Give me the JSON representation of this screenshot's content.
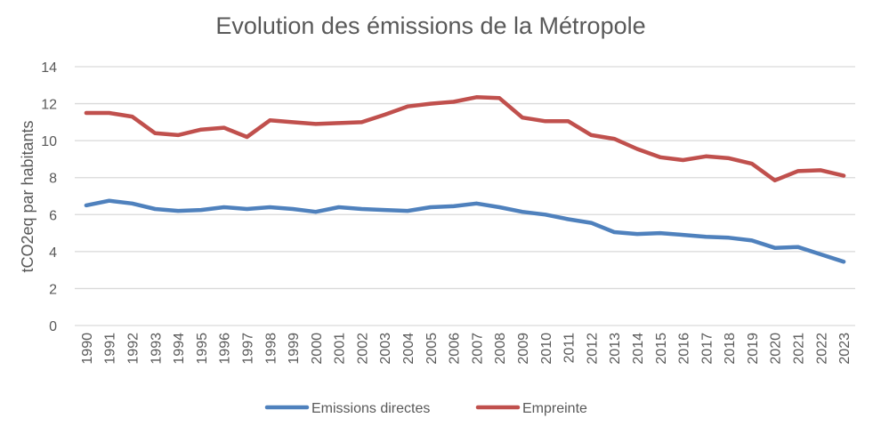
{
  "chart_data": {
    "type": "line",
    "title": "Evolution des émissions de la Métropole",
    "xlabel": "",
    "ylabel": "tCO2eq par habitants",
    "ylim": [
      0,
      14
    ],
    "yticks": [
      0,
      2,
      4,
      6,
      8,
      10,
      12,
      14
    ],
    "grid": true,
    "legend_position": "bottom",
    "x": [
      "1990",
      "1991",
      "1992",
      "1993",
      "1994",
      "1995",
      "1996",
      "1997",
      "1998",
      "1999",
      "2000",
      "2001",
      "2002",
      "2003",
      "2004",
      "2005",
      "2006",
      "2007",
      "2008",
      "2009",
      "2010",
      "2011",
      "2012",
      "2013",
      "2014",
      "2015",
      "2016",
      "2017",
      "2018",
      "2019",
      "2020",
      "2021",
      "2022",
      "2023"
    ],
    "series": [
      {
        "name": "Emissions directes",
        "color": "#4f81bd",
        "values": [
          6.5,
          6.75,
          6.6,
          6.3,
          6.2,
          6.25,
          6.4,
          6.3,
          6.4,
          6.3,
          6.15,
          6.4,
          6.3,
          6.25,
          6.2,
          6.4,
          6.45,
          6.6,
          6.4,
          6.15,
          6.0,
          5.75,
          5.55,
          5.05,
          4.95,
          5.0,
          4.9,
          4.8,
          4.75,
          4.6,
          4.2,
          4.25,
          3.85,
          3.45
        ]
      },
      {
        "name": "Empreinte",
        "color": "#c0504d",
        "values": [
          11.5,
          11.5,
          11.3,
          10.4,
          10.3,
          10.6,
          10.7,
          10.2,
          11.1,
          11.0,
          10.9,
          10.95,
          11.0,
          11.4,
          11.85,
          12.0,
          12.1,
          12.35,
          12.3,
          11.25,
          11.05,
          11.05,
          10.3,
          10.1,
          9.55,
          9.1,
          8.95,
          9.15,
          9.05,
          8.75,
          7.85,
          8.35,
          8.4,
          8.1
        ]
      }
    ]
  }
}
